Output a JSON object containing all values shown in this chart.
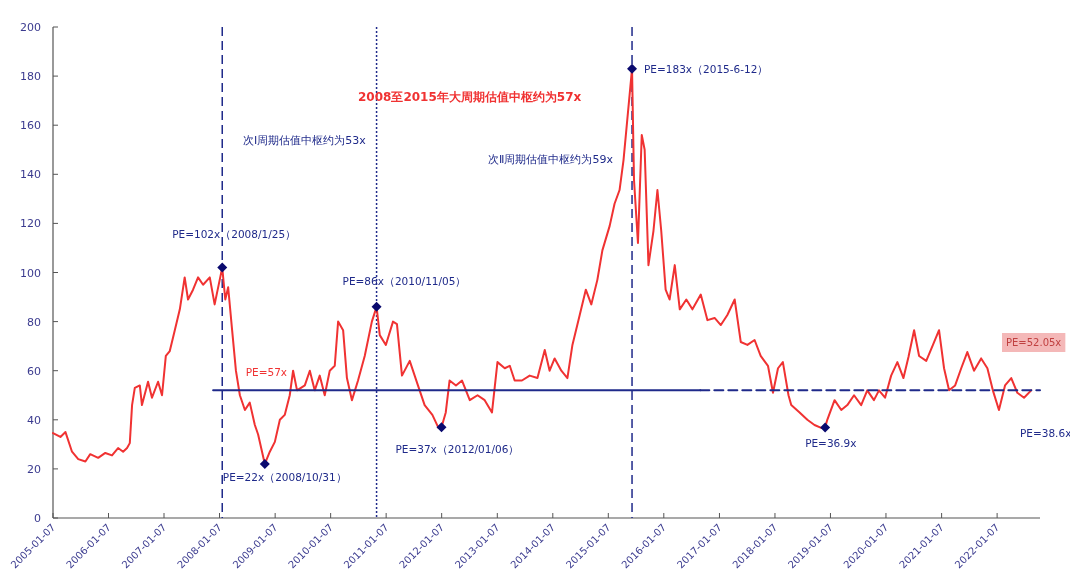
{
  "chart_data": {
    "type": "line",
    "xlim": [
      "2005-01-07",
      "2022-10-16"
    ],
    "ylim": [
      0,
      200
    ],
    "xticks": [
      "2005-01-07",
      "2006-01-07",
      "2007-01-07",
      "2008-01-07",
      "2009-01-07",
      "2010-01-07",
      "2011-01-07",
      "2012-01-07",
      "2013-01-07",
      "2014-01-07",
      "2015-01-07",
      "2016-01-07",
      "2017-01-07",
      "2018-01-07",
      "2019-01-07",
      "2020-01-07",
      "2021-01-07",
      "2022-01-07"
    ],
    "yticks": [
      0,
      20,
      40,
      60,
      80,
      100,
      120,
      140,
      160,
      180,
      200
    ],
    "series": [
      {
        "color": "#f03232",
        "x": [
          "2005-01-07",
          "2005-02-25",
          "2005-03-30",
          "2005-05-12",
          "2005-06-22",
          "2005-08-08",
          "2005-09-09",
          "2005-10-31",
          "2005-12-17",
          "2006-01-30",
          "2006-03-11",
          "2006-04-13",
          "2006-05-09",
          "2006-05-27",
          "2006-06-11",
          "2006-06-29",
          "2006-08-01",
          "2006-08-15",
          "2006-09-24",
          "2006-10-20",
          "2006-11-29",
          "2006-12-25",
          "2007-01-19",
          "2007-02-14",
          "2007-03-19",
          "2007-04-21",
          "2007-05-23",
          "2007-06-14",
          "2007-07-17",
          "2007-08-19",
          "2007-09-21",
          "2007-11-04",
          "2007-12-06",
          "2008-01-25",
          "2008-02-14",
          "2008-03-04",
          "2008-03-30",
          "2008-04-24",
          "2008-05-20",
          "2008-06-22",
          "2008-07-24",
          "2008-08-26",
          "2008-09-17",
          "2008-10-31",
          "2008-12-03",
          "2009-01-05",
          "2009-02-07",
          "2009-03-11",
          "2009-04-13",
          "2009-05-05",
          "2009-05-31",
          "2009-07-21",
          "2009-08-23",
          "2009-09-24",
          "2009-10-27",
          "2009-11-29",
          "2010-01-01",
          "2010-02-03",
          "2010-02-25",
          "2010-03-30",
          "2010-04-24",
          "2010-05-27",
          "2010-07-06",
          "2010-08-19",
          "2010-10-05",
          "2010-11-05",
          "2010-11-26",
          "2011-01-05",
          "2011-02-21",
          "2011-03-19",
          "2011-04-21",
          "2011-06-11",
          "2011-08-04",
          "2011-09-17",
          "2011-11-07",
          "2011-12-17",
          "2012-01-06",
          "2012-02-03",
          "2012-02-28",
          "2012-04-10",
          "2012-05-20",
          "2012-07-10",
          "2012-08-30",
          "2012-10-16",
          "2012-12-03",
          "2013-01-08",
          "2013-02-25",
          "2013-03-30",
          "2013-05-01",
          "2013-06-18",
          "2013-08-08",
          "2013-09-28",
          "2013-11-15",
          "2013-12-17",
          "2014-01-19",
          "2014-03-04",
          "2014-04-13",
          "2014-05-16",
          "2014-07-03",
          "2014-08-12",
          "2014-09-17",
          "2014-10-27",
          "2014-11-29",
          "2015-01-16",
          "2015-02-17",
          "2015-03-22",
          "2015-04-17",
          "2015-06-12",
          "2015-06-25",
          "2015-07-21",
          "2015-08-15",
          "2015-09-03",
          "2015-09-28",
          "2015-10-31",
          "2015-11-26",
          "2015-12-21",
          "2016-01-19",
          "2016-02-14",
          "2016-03-19",
          "2016-04-21",
          "2016-06-03",
          "2016-07-13",
          "2016-09-06",
          "2016-10-20",
          "2016-12-06",
          "2017-01-16",
          "2017-02-28",
          "2017-04-17",
          "2017-05-27",
          "2017-07-10",
          "2017-08-26",
          "2017-10-05",
          "2017-11-22",
          "2017-12-25",
          "2018-01-27",
          "2018-02-28",
          "2018-04-06",
          "2018-04-24",
          "2018-06-18",
          "2018-08-08",
          "2018-09-24",
          "2018-11-07",
          "2018-12-03",
          "2018-12-17",
          "2019-02-03",
          "2019-03-19",
          "2019-04-28",
          "2019-06-11",
          "2019-07-28",
          "2019-09-06",
          "2019-10-20",
          "2019-11-22",
          "2020-01-01",
          "2020-02-10",
          "2020-03-22",
          "2020-05-01",
          "2020-06-03",
          "2020-07-10",
          "2020-08-12",
          "2020-09-28",
          "2020-11-11",
          "2020-12-21",
          "2021-01-23",
          "2021-02-25",
          "2021-04-06",
          "2021-05-16",
          "2021-06-25",
          "2021-08-08",
          "2021-09-24",
          "2021-11-04",
          "2021-12-10",
          "2022-01-19",
          "2022-02-28",
          "2022-04-10",
          "2022-05-20",
          "2022-07-03",
          "2022-08-19"
        ],
        "values": [
          34.6,
          33,
          35,
          27,
          24,
          23,
          26,
          24.5,
          26.5,
          25.5,
          28.5,
          27,
          28.5,
          30.5,
          46,
          53,
          54,
          46,
          55.5,
          49,
          55.5,
          50,
          66,
          68,
          76.5,
          85,
          98,
          89,
          93,
          98,
          95,
          98,
          87,
          102,
          89,
          94,
          76.5,
          60,
          50,
          44,
          47,
          38,
          34,
          22,
          27,
          31,
          40,
          42,
          50,
          60,
          52,
          54,
          60,
          52,
          58,
          50,
          60,
          62,
          80,
          76.5,
          57,
          48,
          56,
          66,
          80,
          86,
          74.5,
          70.5,
          80,
          79,
          58,
          64,
          54,
          46,
          42,
          36.7,
          37,
          43,
          56,
          54,
          56,
          48,
          50,
          48,
          43,
          63.5,
          61,
          62,
          56,
          56,
          58,
          57,
          68.4,
          60,
          65,
          60,
          57,
          70.5,
          82.7,
          93,
          87,
          97,
          109,
          119,
          128,
          133.6,
          145.8,
          183,
          137.7,
          112,
          156,
          150,
          103,
          117,
          133.6,
          117,
          93,
          89,
          103,
          85,
          89,
          85,
          91,
          80.6,
          81.5,
          78.6,
          82.7,
          89,
          71.7,
          70.5,
          72.5,
          66,
          62,
          51,
          61,
          63.5,
          50,
          46,
          43,
          40,
          37.9,
          36.7,
          36.9,
          40,
          48,
          44,
          46,
          50,
          46,
          52,
          48,
          52,
          49,
          58,
          63.5,
          57,
          65.6,
          76.5,
          66,
          64,
          70.5,
          76.5,
          61,
          52,
          54,
          61,
          67.6,
          60,
          65,
          61,
          52,
          44,
          54,
          57,
          51,
          49,
          52
        ]
      },
      {
        "type": "scatter",
        "color": "#0a0a6e",
        "marker": "diamond",
        "x": [
          "2008-01-25",
          "2008-10-31",
          "2010-11-05",
          "2012-01-06",
          "2015-06-12",
          "2018-12-03"
        ],
        "values": [
          102,
          22,
          86,
          37,
          183,
          36.9
        ]
      },
      {
        "color": "#1f2a8a",
        "line_style": "solid",
        "x": [
          "2007-11-26",
          "2016-09-03"
        ],
        "values": [
          52,
          52
        ]
      },
      {
        "color": "#1f2a8a",
        "line_style": "dashed",
        "x": [
          "2016-09-03",
          "2022-10-16"
        ],
        "values": [
          52,
          52
        ]
      }
    ],
    "ref_lines": [
      {
        "axis": "x",
        "value": "2008-01-25",
        "color": "#1f2a8a",
        "line_style": "dashed"
      },
      {
        "axis": "x",
        "value": "2010-11-05",
        "color": "#1f2a8a",
        "line_style": "dotted"
      },
      {
        "axis": "x",
        "value": "2015-06-12",
        "color": "#1f2a8a",
        "line_style": "dashed"
      }
    ],
    "annotations": [
      "2008至2015年大周期估值中枢约为57x",
      "次Ⅰ周期估值中枢约为53x",
      "次Ⅱ周期估值中枢约为59x",
      {
        "text": "PE=102x（2008/1/25）",
        "x": "2008-01-25",
        "y": 102
      },
      {
        "text": "PE=22x（2008/10/31）",
        "x": "2008-10-31",
        "y": 22
      },
      {
        "text": "PE=86x（2010/11/05）",
        "x": "2010-11-05",
        "y": 86
      },
      {
        "text": "PE=37x（2012/01/06）",
        "x": "2012-01-06",
        "y": 37
      },
      {
        "text": "PE=183x（2015-6-12）",
        "x": "2015-06-12",
        "y": 183
      },
      {
        "text": "PE=36.9x",
        "x": "2018-12-03",
        "y": 36.9
      },
      {
        "text": "PE=57x",
        "x": "2008-06-01",
        "y": 52
      },
      "PE=38.6x",
      "PE=52.05x"
    ]
  }
}
